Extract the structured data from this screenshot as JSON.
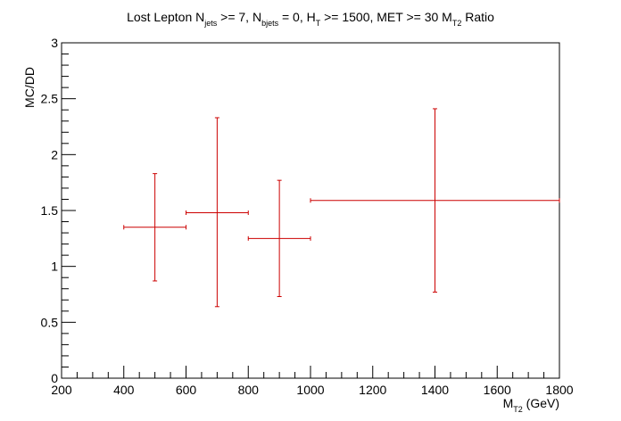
{
  "chart_data": {
    "type": "scatter",
    "title": {
      "p1": "Lost Lepton N",
      "s1": "jets",
      "p2": " >= 7, N",
      "s2": "bjets",
      "p3": " = 0, H",
      "s3": "T",
      "p4": " >= 1500, MET >= 30 M",
      "s4": "T2",
      "p5": " Ratio"
    },
    "xlabel": {
      "main": "M",
      "sub": "T2",
      "unit": " (GeV)"
    },
    "ylabel": "MC/DD",
    "xlim": [
      200,
      1800
    ],
    "ylim": [
      0,
      3
    ],
    "x_ticks": [
      "200",
      "400",
      "600",
      "800",
      "1000",
      "1200",
      "1400",
      "1600",
      "1800"
    ],
    "y_ticks": [
      "0",
      "0.5",
      "1",
      "1.5",
      "2",
      "2.5",
      "3"
    ],
    "grid": false,
    "legend": "none",
    "color": "#cc0000",
    "points": [
      {
        "x": 500,
        "x_low": 400,
        "x_high": 600,
        "y": 1.35,
        "y_low": 0.87,
        "y_high": 1.83
      },
      {
        "x": 700,
        "x_low": 600,
        "x_high": 800,
        "y": 1.48,
        "y_low": 0.64,
        "y_high": 2.33
      },
      {
        "x": 900,
        "x_low": 800,
        "x_high": 1000,
        "y": 1.25,
        "y_low": 0.73,
        "y_high": 1.77
      },
      {
        "x": 1400,
        "x_low": 1000,
        "x_high": 1800,
        "y": 1.59,
        "y_low": 0.77,
        "y_high": 2.41
      }
    ]
  }
}
